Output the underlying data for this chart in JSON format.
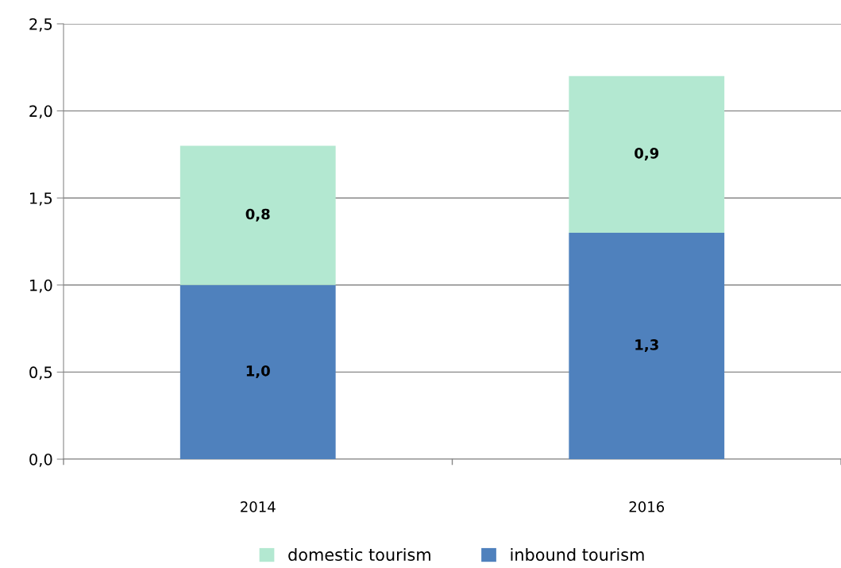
{
  "chart_data": {
    "type": "bar",
    "stacked": true,
    "categories": [
      "2014",
      "2016"
    ],
    "series": [
      {
        "name": "inbound tourism",
        "color": "#4f81bd",
        "values": [
          1.0,
          1.3
        ],
        "value_labels": [
          "1,0",
          "1,3"
        ]
      },
      {
        "name": "domestic tourism",
        "color": "#b3e8d1",
        "values": [
          0.8,
          0.9
        ],
        "value_labels": [
          "0,8",
          "0,9"
        ]
      }
    ],
    "ylim": [
      0,
      2.5
    ],
    "yticks": [
      {
        "value": 0,
        "label": "0,0"
      },
      {
        "value": 0.5,
        "label": "0,5"
      },
      {
        "value": 1.0,
        "label": "1,0"
      },
      {
        "value": 1.5,
        "label": "1,5"
      },
      {
        "value": 2.0,
        "label": "2,0"
      },
      {
        "value": 2.5,
        "label": "2,5"
      }
    ],
    "grid": "y",
    "legend": "bottom"
  }
}
